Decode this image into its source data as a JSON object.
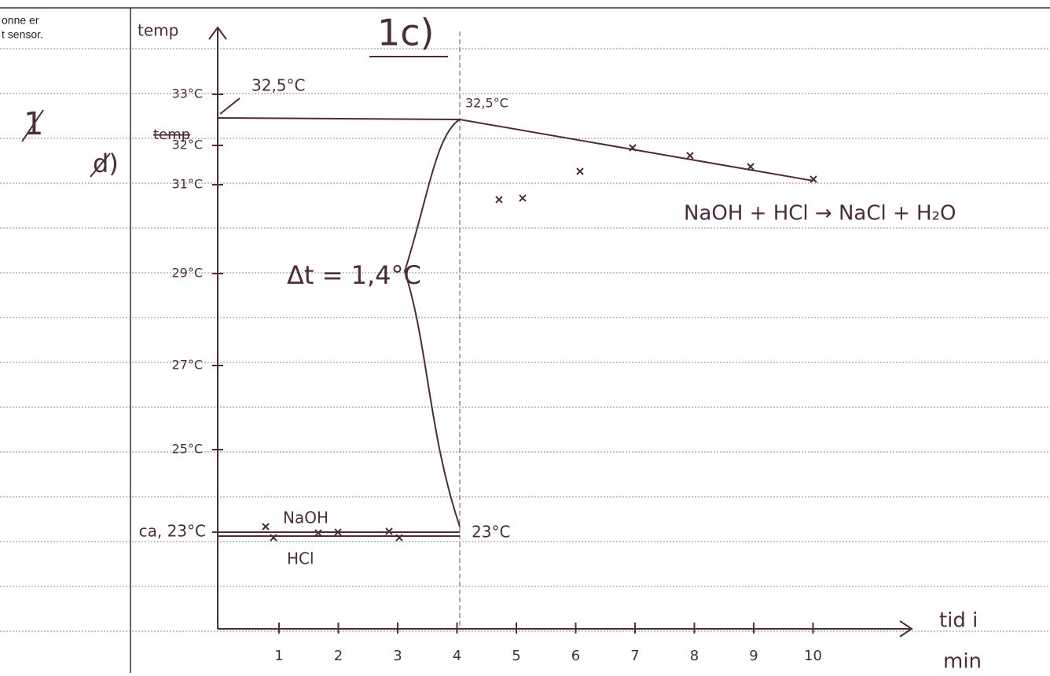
{
  "margin": {
    "lines": [
      "onne er",
      "t sensor."
    ],
    "task_number": "1",
    "subtask": "d)"
  },
  "graph": {
    "title": "1c)",
    "y_axis_label": "temp",
    "x_axis_label": [
      "tid i",
      "min"
    ],
    "struck_label": "temp",
    "y_labels": [
      "33°C",
      "32°C",
      "31°C",
      "29°C",
      "27°C",
      "25°C",
      "ca, 23°C"
    ],
    "x_labels": [
      "1",
      "2",
      "3",
      "4",
      "5",
      "6",
      "7",
      "8",
      "9",
      "10"
    ],
    "annotations": {
      "peak_left": "32,5°C",
      "peak_right": "32,5°C",
      "start": "23°C",
      "delta": "Δt = 1,4°C",
      "upper_series": "NaOH",
      "lower_series": "HCl",
      "equation": "NaOH + HCl → NaCl + H₂O"
    }
  }
}
